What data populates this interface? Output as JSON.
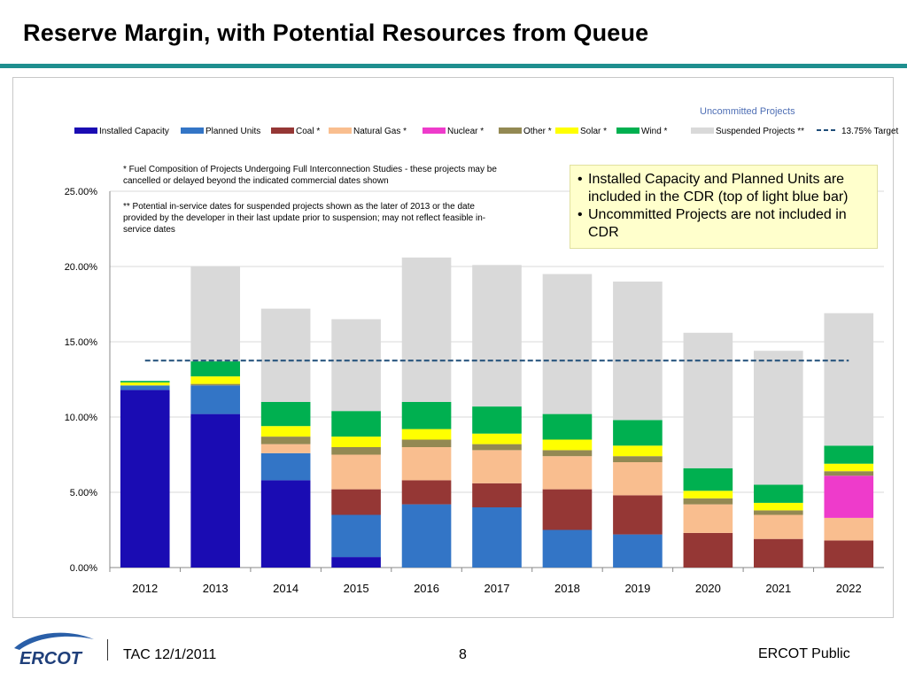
{
  "slide": {
    "title": "Reserve Margin, with Potential Resources from Queue",
    "footer_left": "TAC 12/1/2011",
    "page_number": "8",
    "footer_right": "ERCOT Public",
    "logo_text": "ERCOT"
  },
  "annotations": {
    "uncommitted_label": "Uncommitted Projects",
    "note1": "*    Fuel Composition of Projects Undergoing Full Interconnection  Studies - these projects may be cancelled or delayed beyond the  indicated  commercial dates shown",
    "note2": "**  Potential in-service dates for suspended projects shown as the later of 2013 or the date provided by the developer in their last update prior to suspension;  may not reflect feasible in-service dates",
    "callout": [
      "Installed Capacity and  Planned Units are included in the CDR (top of light blue bar)",
      "Uncommitted Projects are not included in CDR"
    ]
  },
  "chart_data": {
    "type": "bar",
    "stacked": true,
    "categories": [
      "2012",
      "2013",
      "2014",
      "2015",
      "2016",
      "2017",
      "2018",
      "2019",
      "2020",
      "2021",
      "2022"
    ],
    "y_ticks": [
      "0.00%",
      "5.00%",
      "10.00%",
      "15.00%",
      "20.00%",
      "25.00%"
    ],
    "ylim": [
      0,
      25
    ],
    "legend_position": "top",
    "series": [
      {
        "name": "Installed Capacity",
        "color": "#1a0cb3",
        "values": [
          11.8,
          10.2,
          5.8,
          0.7,
          0,
          0,
          0,
          0,
          0,
          0,
          0
        ]
      },
      {
        "name": "Planned Units",
        "color": "#3375c6",
        "values": [
          0.3,
          1.9,
          1.8,
          2.8,
          4.2,
          4.0,
          2.5,
          2.2,
          0,
          0,
          0
        ]
      },
      {
        "name": "Coal *",
        "color": "#953735",
        "values": [
          0,
          0,
          0,
          1.7,
          1.6,
          1.6,
          2.7,
          2.6,
          2.3,
          1.9,
          1.8
        ]
      },
      {
        "name": "Natural Gas *",
        "color": "#f9be8f",
        "values": [
          0,
          0,
          0.6,
          2.3,
          2.2,
          2.2,
          2.2,
          2.2,
          1.9,
          1.6,
          1.5
        ]
      },
      {
        "name": "Nuclear *",
        "color": "#ee3bcb",
        "values": [
          0,
          0,
          0,
          0,
          0,
          0,
          0,
          0,
          0,
          0,
          2.8
        ]
      },
      {
        "name": "Other *",
        "color": "#938953",
        "values": [
          0,
          0.1,
          0.5,
          0.5,
          0.5,
          0.4,
          0.4,
          0.4,
          0.4,
          0.3,
          0.3
        ]
      },
      {
        "name": "Solar *",
        "color": "#ffff00",
        "values": [
          0.2,
          0.5,
          0.7,
          0.7,
          0.7,
          0.7,
          0.7,
          0.7,
          0.5,
          0.5,
          0.5
        ]
      },
      {
        "name": "Wind *",
        "color": "#00b050",
        "values": [
          0.1,
          1.0,
          1.6,
          1.7,
          1.8,
          1.8,
          1.7,
          1.7,
          1.5,
          1.2,
          1.2
        ]
      },
      {
        "name": "Suspended Projects **",
        "color": "#d9d9d9",
        "values": [
          0,
          6.3,
          6.2,
          6.1,
          9.6,
          9.4,
          9.3,
          9.2,
          9.0,
          8.9,
          8.8
        ]
      }
    ],
    "target": {
      "name": "13.75% Target",
      "value": 13.75,
      "color": "#1f4e79"
    }
  }
}
